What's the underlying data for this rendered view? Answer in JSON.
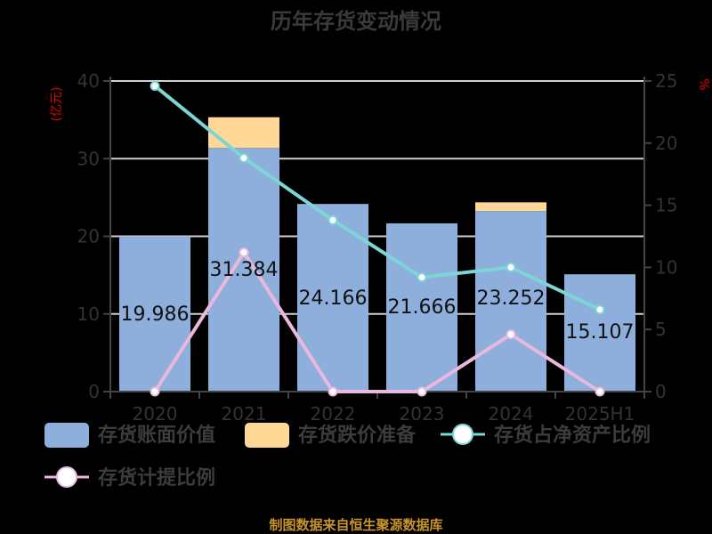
{
  "title": "历年存货变动情况",
  "source": "制图数据来自恒生聚源数据库",
  "colors": {
    "book_value": "#8eaedb",
    "impairment": "#ffd897",
    "net_asset_ratio": "#7dd6d6",
    "provision_ratio": "#e9b9dd",
    "grid": "#d0d0d0",
    "axis": "#444444",
    "unit": "#ee0000",
    "source": "#c8932a"
  },
  "left_axis": {
    "unit": "(亿元)",
    "ticks": [
      "0",
      "10",
      "20",
      "30",
      "40"
    ]
  },
  "right_axis": {
    "unit": "%",
    "ticks": [
      "0",
      "5",
      "10",
      "15",
      "20",
      "25"
    ]
  },
  "legend": [
    {
      "label": "存货账面价值",
      "kind": "bar"
    },
    {
      "label": "存货跌价准备",
      "kind": "bar"
    },
    {
      "label": "存货占净资产比例",
      "kind": "line"
    },
    {
      "label": "存货计提比例",
      "kind": "line"
    }
  ],
  "chart_data": {
    "type": "bar",
    "title": "历年存货变动情况",
    "categories": [
      "2020",
      "2021",
      "2022",
      "2023",
      "2024",
      "2025H1"
    ],
    "series": [
      {
        "name": "存货账面价值",
        "type": "bar",
        "axis": "left",
        "stack": "inv",
        "values": [
          19.986,
          31.384,
          24.166,
          21.666,
          23.252,
          15.107
        ],
        "labels": [
          "19.986",
          "31.384",
          "24.166",
          "21.666",
          "23.252",
          "15.107"
        ]
      },
      {
        "name": "存货跌价准备",
        "type": "bar",
        "axis": "left",
        "stack": "inv",
        "values": [
          0,
          3.95,
          0,
          0,
          1.12,
          0
        ]
      },
      {
        "name": "存货占净资产比例",
        "type": "line",
        "axis": "right",
        "values": [
          24.6,
          18.8,
          13.8,
          9.2,
          10.0,
          6.6
        ]
      },
      {
        "name": "存货计提比例",
        "type": "line",
        "axis": "right",
        "values": [
          0,
          11.2,
          0,
          0,
          4.6,
          0
        ]
      }
    ],
    "xlabel": "",
    "ylabel": "(亿元)",
    "y2label": "%",
    "ylim": [
      0,
      40
    ],
    "y2lim": [
      0,
      25
    ],
    "grid": true,
    "legend_position": "bottom"
  }
}
